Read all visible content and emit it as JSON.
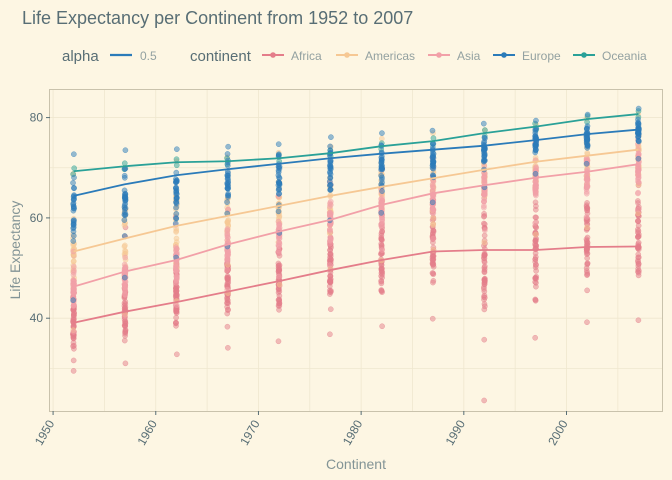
{
  "chart_data": {
    "type": "scatter",
    "title": "Life Expectancy per Continent from 1952 to 2007",
    "xlabel": "Continent",
    "ylabel": "Life Expectancy",
    "xlim": [
      1949.7,
      2009.3
    ],
    "ylim": [
      21.5,
      85.5
    ],
    "x_ticks": [
      "1950",
      "1960",
      "1970",
      "1980",
      "1990",
      "2000"
    ],
    "y_ticks": [
      "40",
      "60",
      "80"
    ],
    "grid": true,
    "legend": {
      "position": "top",
      "alpha_title": "alpha",
      "alpha_value": "0.5",
      "color_title": "continent"
    },
    "years": [
      1952,
      1957,
      1962,
      1967,
      1972,
      1977,
      1982,
      1987,
      1992,
      1997,
      2002,
      2007
    ],
    "series": [
      {
        "name": "Africa",
        "color": "#e47d8a",
        "trend": [
          39.1,
          41.3,
          43.2,
          45.3,
          47.4,
          49.6,
          51.6,
          53.3,
          53.6,
          53.6,
          54.2,
          54.3
        ],
        "ranges": [
          [
            29.5,
            52.5
          ],
          [
            31.0,
            58.1
          ],
          [
            32.8,
            60.2
          ],
          [
            34.1,
            61.6
          ],
          [
            35.4,
            64.3
          ],
          [
            36.8,
            67.1
          ],
          [
            38.4,
            69.9
          ],
          [
            39.9,
            71.9
          ],
          [
            23.6,
            73.6
          ],
          [
            36.1,
            74.8
          ],
          [
            39.2,
            75.7
          ],
          [
            39.6,
            76.4
          ]
        ]
      },
      {
        "name": "Americas",
        "color": "#f6c894",
        "trend": [
          53.3,
          55.9,
          58.4,
          60.4,
          62.4,
          64.4,
          66.2,
          67.9,
          69.6,
          71.2,
          72.4,
          73.6
        ],
        "ranges": [
          [
            37.6,
            68.8
          ],
          [
            40.7,
            70.0
          ],
          [
            43.4,
            71.3
          ],
          [
            45.0,
            72.1
          ],
          [
            46.7,
            73.0
          ],
          [
            49.9,
            74.2
          ],
          [
            51.5,
            75.8
          ],
          [
            53.6,
            76.9
          ],
          [
            55.1,
            77.5
          ],
          [
            56.7,
            78.6
          ],
          [
            58.1,
            79.8
          ],
          [
            60.9,
            80.7
          ]
        ]
      },
      {
        "name": "Asia",
        "color": "#f2a0a8",
        "trend": [
          46.3,
          49.3,
          51.6,
          54.7,
          57.3,
          59.6,
          62.6,
          64.9,
          66.5,
          68.0,
          69.2,
          70.7
        ]
      },
      {
        "name": "Europe",
        "color": "#2b7bb9",
        "trend": [
          64.4,
          66.7,
          68.5,
          69.7,
          70.8,
          71.9,
          72.8,
          73.6,
          74.4,
          75.5,
          76.7,
          77.6
        ],
        "ranges": [
          [
            43.6,
            72.7
          ],
          [
            48.1,
            73.5
          ],
          [
            52.1,
            73.7
          ],
          [
            54.3,
            74.2
          ],
          [
            57.0,
            74.7
          ],
          [
            59.5,
            76.1
          ],
          [
            61.0,
            76.9
          ],
          [
            63.1,
            77.4
          ],
          [
            66.1,
            78.8
          ],
          [
            68.8,
            79.4
          ],
          [
            70.8,
            80.6
          ],
          [
            71.8,
            81.8
          ]
        ]
      },
      {
        "name": "Oceania",
        "color": "#2aa198",
        "trend": [
          69.3,
          70.3,
          71.1,
          71.3,
          71.9,
          72.9,
          74.3,
          75.3,
          76.9,
          78.2,
          79.7,
          80.7
        ]
      }
    ]
  }
}
